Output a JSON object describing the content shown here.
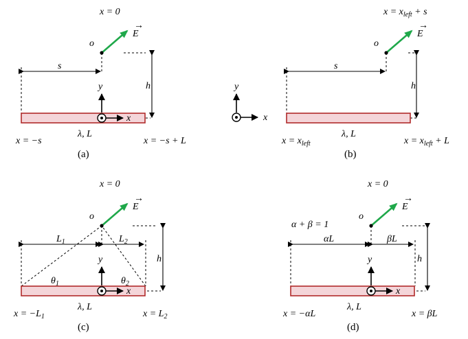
{
  "panels": [
    {
      "id": "a",
      "caption": "(a)",
      "top_label": "x = 0",
      "field_label": "E",
      "origin_label": "o",
      "y_label": "y",
      "x_label": "x",
      "h_label": "h",
      "dim_left": "s",
      "charge_label": "λ, L",
      "end_left": "x = −s",
      "end_right": "x = −s + L"
    },
    {
      "id": "b",
      "caption": "(b)",
      "top_label_main": "x = x",
      "top_label_sub": "left",
      "top_label_tail": " + s",
      "field_label": "E",
      "origin_label": "o",
      "h_label": "h",
      "dim_left": "s",
      "charge_label": "λ, L",
      "end_left_main": "x = x",
      "end_left_sub": "left",
      "end_right_main": "x = x",
      "end_right_sub": "left",
      "end_right_tail": " + L",
      "frame_y": "y",
      "frame_x": "x"
    },
    {
      "id": "c",
      "caption": "(c)",
      "top_label": "x = 0",
      "field_label": "E",
      "origin_label": "o",
      "y_label": "y",
      "x_label": "x",
      "h_label": "h",
      "dim_left_main": "L",
      "dim_left_sub": "1",
      "dim_right_main": "L",
      "dim_right_sub": "2",
      "angle_left_main": "θ",
      "angle_left_sub": "1",
      "angle_right_main": "θ",
      "angle_right_sub": "2",
      "charge_label": "λ, L",
      "end_left_main": "x = −L",
      "end_left_sub": "1",
      "end_right_main": "x = L",
      "end_right_sub": "2"
    },
    {
      "id": "d",
      "caption": "(d)",
      "top_label": "x = 0",
      "field_label": "E",
      "origin_label": "o",
      "y_label": "y",
      "x_label": "x",
      "h_label": "h",
      "constraint": "α + β = 1",
      "dim_left": "αL",
      "dim_right": "βL",
      "charge_label": "λ, L",
      "end_left": "x = −αL",
      "end_right": "x = βL"
    }
  ]
}
